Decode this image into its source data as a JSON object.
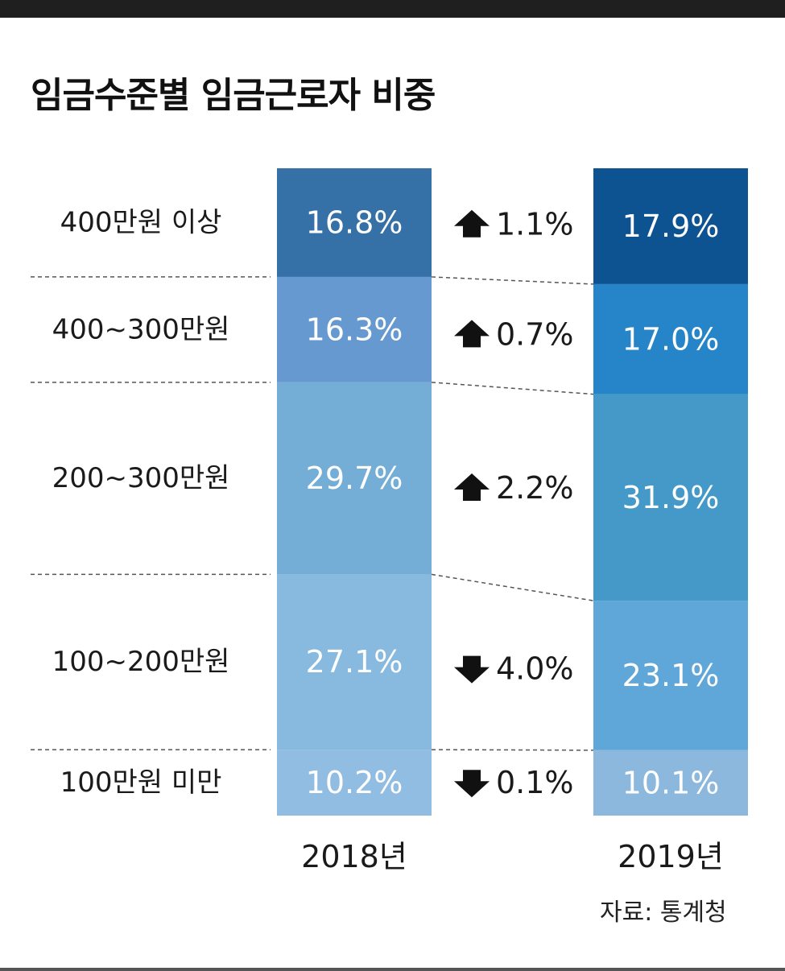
{
  "title": "임금수준별 임금근로자 비중",
  "source": "자료: 통계청",
  "chart_data": {
    "type": "bar",
    "stacked": true,
    "percent": true,
    "categories": [
      "400만원 이상",
      "400~300만원",
      "200~300만원",
      "100~200만원",
      "100만원 미만"
    ],
    "series": [
      {
        "name": "2018년",
        "values": [
          16.8,
          16.3,
          29.7,
          27.1,
          10.2
        ],
        "labels": [
          "16.8%",
          "16.3%",
          "29.7%",
          "27.1%",
          "10.2%"
        ],
        "colors": [
          "#3571a7",
          "#6699cf",
          "#74add6",
          "#88bae0",
          "#92bde3"
        ]
      },
      {
        "name": "2019년",
        "values": [
          17.9,
          17.0,
          31.9,
          23.1,
          10.1
        ],
        "labels": [
          "17.9%",
          "17.0%",
          "31.9%",
          "23.1%",
          "10.1%"
        ],
        "colors": [
          "#0d5291",
          "#2585c8",
          "#4499c9",
          "#5fa7d8",
          "#8db8dd"
        ]
      }
    ],
    "changes": [
      {
        "direction": "up",
        "label": "1.1%"
      },
      {
        "direction": "up",
        "label": "0.7%"
      },
      {
        "direction": "up",
        "label": "2.2%"
      },
      {
        "direction": "down",
        "label": "4.0%"
      },
      {
        "direction": "down",
        "label": "0.1%"
      }
    ],
    "colors": {
      "text": "#1a1a1a",
      "segment_text": "#ffffff",
      "dash": "#555555",
      "arrow": "#111111"
    }
  }
}
